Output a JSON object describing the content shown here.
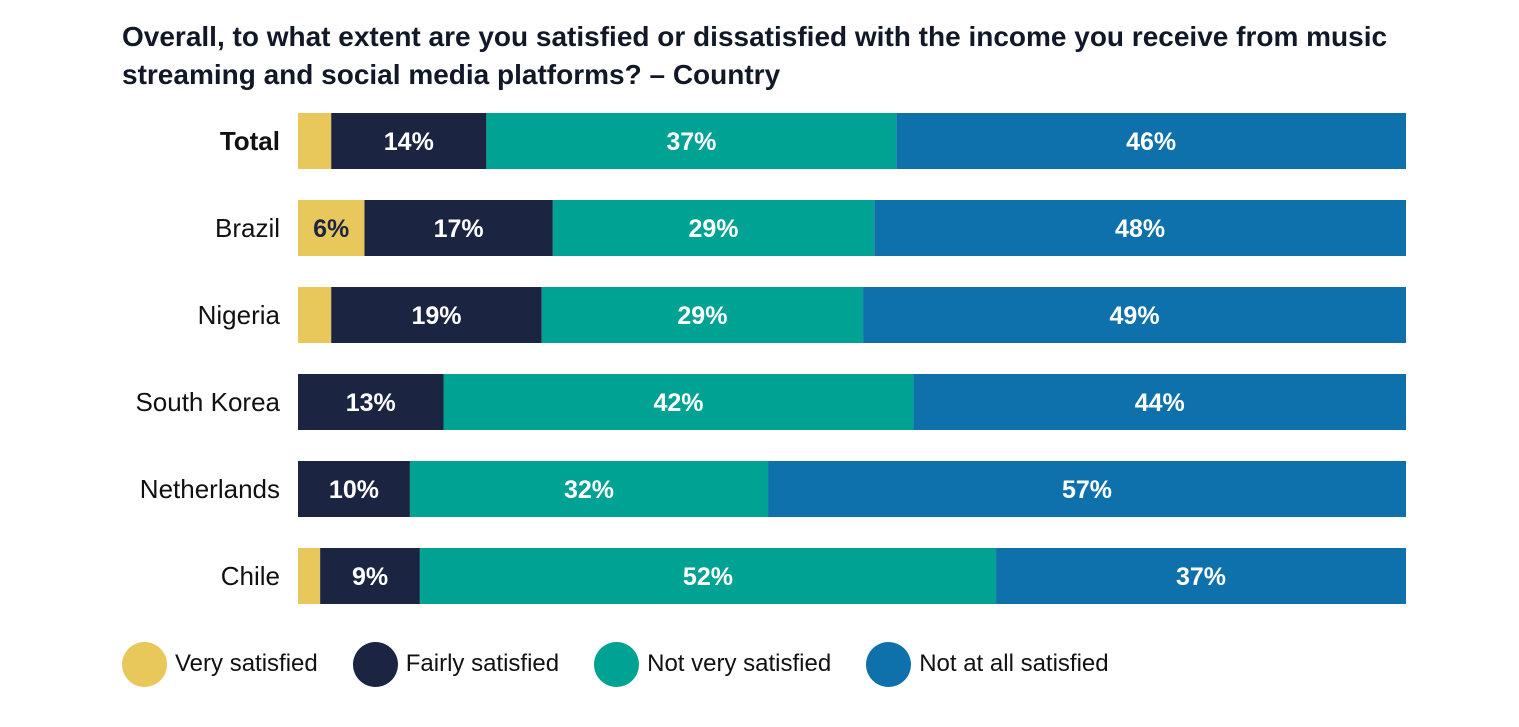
{
  "chart_data": {
    "type": "bar",
    "orientation": "horizontal",
    "stacked": true,
    "title": "Overall, to what extent are you satisfied or dissatisfied with the income you receive from music streaming and social media platforms? – Country",
    "categories": [
      "Total",
      "Brazil",
      "Nigeria",
      "South Korea",
      "Netherlands",
      "Chile"
    ],
    "series": [
      {
        "name": "Very satisfied",
        "color": "#E8C85A",
        "values": [
          3,
          6,
          3,
          0,
          0,
          2
        ],
        "labels": [
          "",
          "6%",
          "",
          "",
          "",
          ""
        ]
      },
      {
        "name": "Fairly satisfied",
        "color": "#1B2542",
        "values": [
          14,
          17,
          19,
          13,
          10,
          9
        ],
        "labels": [
          "14%",
          "17%",
          "19%",
          "13%",
          "10%",
          "9%"
        ]
      },
      {
        "name": "Not very satisfied",
        "color": "#00A393",
        "values": [
          37,
          29,
          29,
          42,
          32,
          52
        ],
        "labels": [
          "37%",
          "29%",
          "29%",
          "42%",
          "32%",
          "52%"
        ]
      },
      {
        "name": "Not at all satisfied",
        "color": "#0F71AC",
        "values": [
          46,
          48,
          49,
          44,
          57,
          37
        ],
        "labels": [
          "46%",
          "48%",
          "49%",
          "44%",
          "57%",
          "37%"
        ]
      }
    ],
    "xlim": [
      0,
      100
    ],
    "grid": false,
    "legend_position": "bottom-left"
  }
}
